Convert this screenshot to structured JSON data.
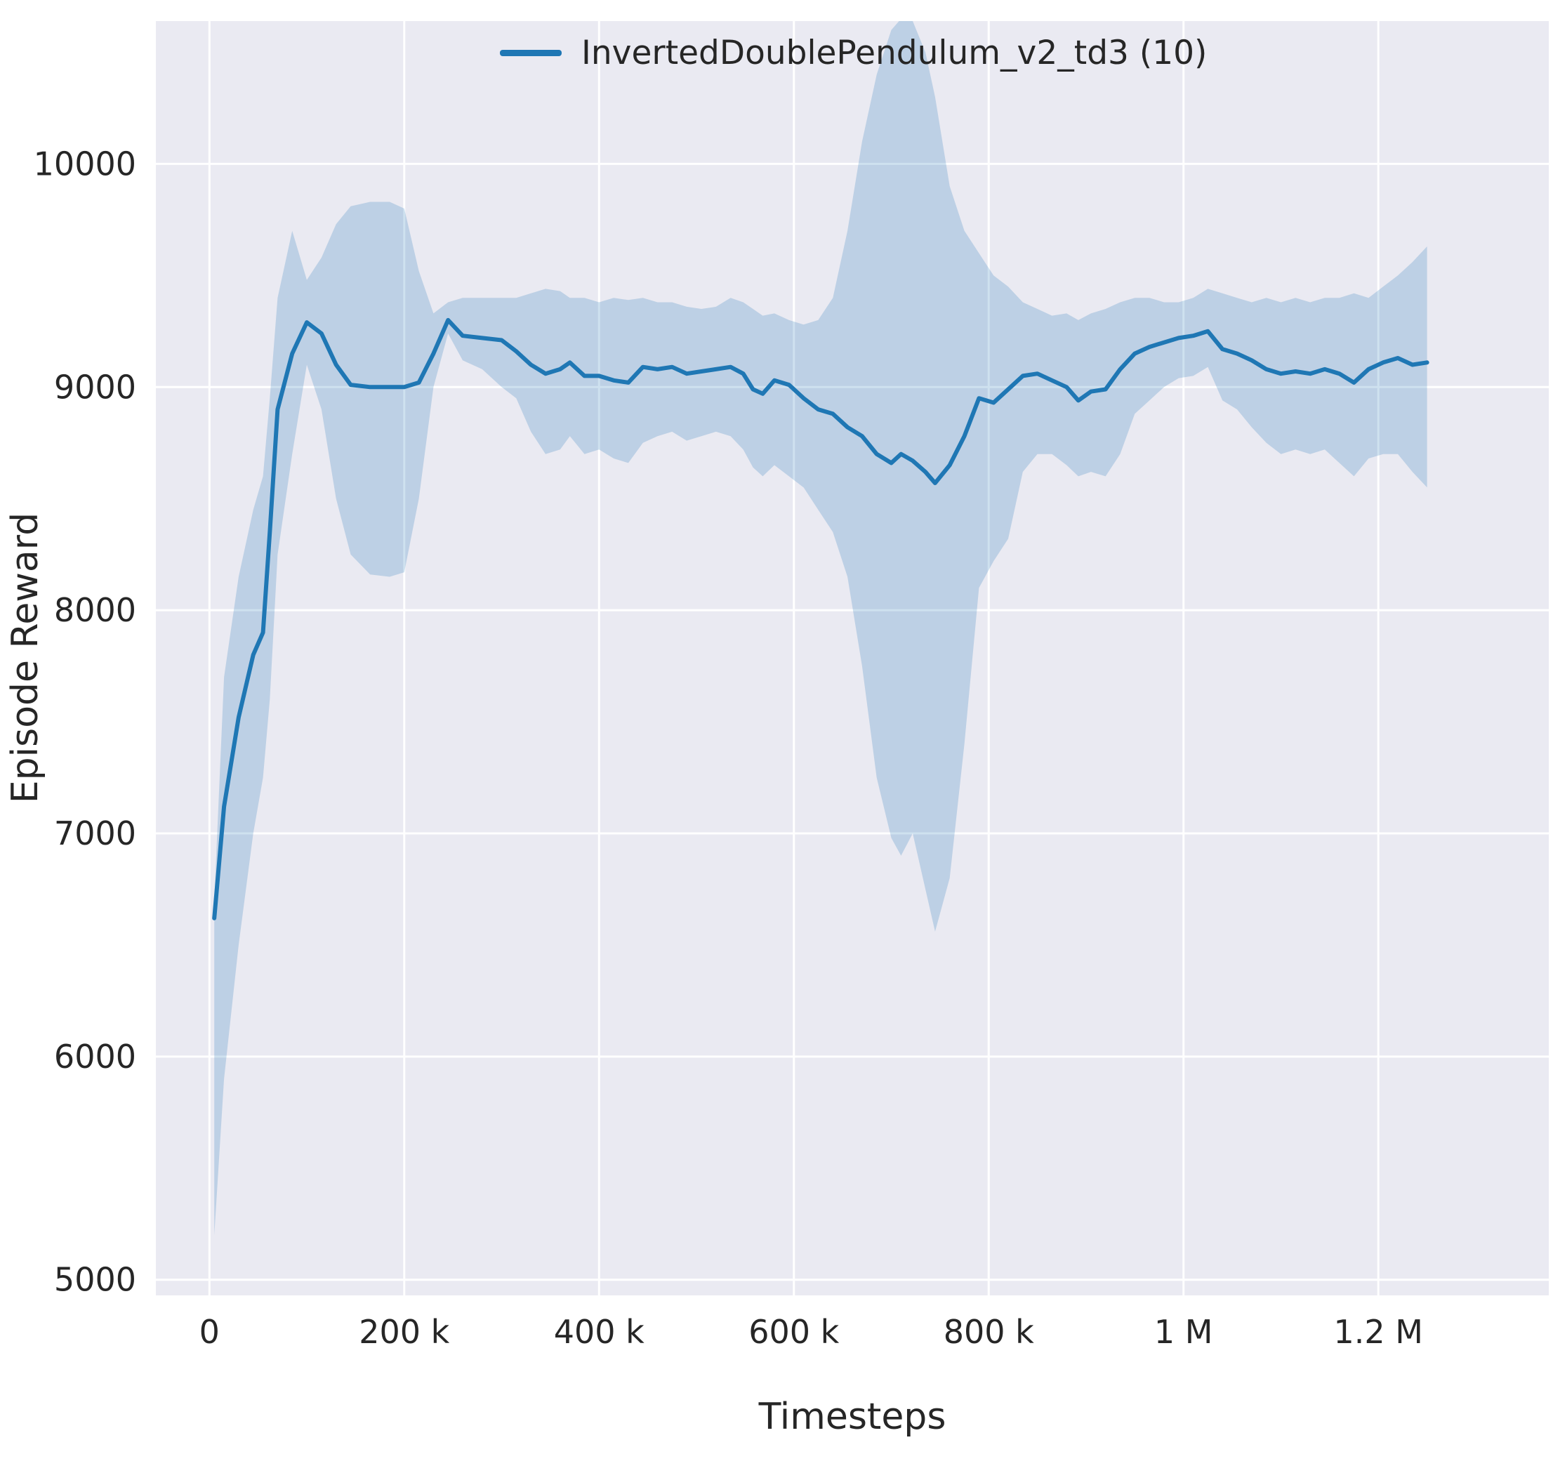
{
  "figure": {
    "background": "#ffffff",
    "plot_background": "#eaeaf2",
    "grid_color": "#ffffff",
    "text_color": "#262626"
  },
  "legend": {
    "label": "InvertedDoublePendulum_v2_td3 (10)",
    "line_color": "#1f77b4"
  },
  "chart_data": {
    "type": "line",
    "title": "",
    "xlabel": "Timesteps",
    "ylabel": "Episode Reward",
    "grid": true,
    "legend_position": "upper center",
    "xlim": [
      -55000,
      1375000
    ],
    "ylim": [
      4930,
      10640
    ],
    "x_ticks": [
      0,
      200000,
      400000,
      600000,
      800000,
      1000000,
      1200000
    ],
    "x_tick_labels": [
      "0",
      "200 k",
      "400 k",
      "600 k",
      "800 k",
      "1 M",
      "1.2 M"
    ],
    "y_ticks": [
      5000,
      6000,
      7000,
      8000,
      9000,
      10000
    ],
    "y_tick_labels": [
      "5000",
      "6000",
      "7000",
      "8000",
      "9000",
      "10000"
    ],
    "series": [
      {
        "name": "InvertedDoublePendulum_v2_td3 (10)",
        "color": "#1f77b4",
        "band_color": "#1f77b4",
        "band_opacity": 0.22,
        "x": [
          5000,
          15000,
          30000,
          45000,
          55000,
          62000,
          70000,
          85000,
          100000,
          115000,
          130000,
          145000,
          165000,
          185000,
          200000,
          215000,
          230000,
          245000,
          260000,
          280000,
          300000,
          315000,
          330000,
          345000,
          360000,
          370000,
          385000,
          400000,
          415000,
          430000,
          445000,
          460000,
          475000,
          490000,
          505000,
          520000,
          535000,
          548000,
          558000,
          568000,
          580000,
          595000,
          610000,
          625000,
          640000,
          655000,
          670000,
          685000,
          700000,
          710000,
          722000,
          735000,
          745000,
          760000,
          775000,
          790000,
          805000,
          820000,
          835000,
          850000,
          865000,
          880000,
          892000,
          905000,
          920000,
          935000,
          950000,
          965000,
          980000,
          995000,
          1010000,
          1025000,
          1040000,
          1055000,
          1070000,
          1085000,
          1100000,
          1115000,
          1130000,
          1145000,
          1160000,
          1175000,
          1190000,
          1205000,
          1220000,
          1235000,
          1250000
        ],
        "mean": [
          6620,
          7120,
          7520,
          7800,
          7900,
          8350,
          8900,
          9150,
          9290,
          9240,
          9100,
          9010,
          9000,
          9000,
          9000,
          9020,
          9150,
          9300,
          9230,
          9220,
          9210,
          9160,
          9100,
          9060,
          9080,
          9110,
          9050,
          9050,
          9030,
          9020,
          9090,
          9080,
          9090,
          9060,
          9070,
          9080,
          9090,
          9060,
          8990,
          8970,
          9030,
          9010,
          8950,
          8900,
          8880,
          8820,
          8780,
          8700,
          8660,
          8700,
          8670,
          8620,
          8570,
          8650,
          8780,
          8950,
          8930,
          8990,
          9050,
          9060,
          9030,
          9000,
          8940,
          8980,
          8990,
          9080,
          9150,
          9180,
          9200,
          9220,
          9230,
          9250,
          9170,
          9150,
          9120,
          9080,
          9060,
          9070,
          9060,
          9080,
          9060,
          9020,
          9080,
          9110,
          9130,
          9100,
          9110
        ],
        "lo": [
          5200,
          5900,
          6500,
          7000,
          7250,
          7600,
          8250,
          8700,
          9100,
          8900,
          8500,
          8250,
          8160,
          8150,
          8170,
          8500,
          9000,
          9240,
          9120,
          9080,
          9000,
          8950,
          8800,
          8700,
          8720,
          8780,
          8700,
          8720,
          8680,
          8660,
          8750,
          8780,
          8800,
          8760,
          8780,
          8800,
          8780,
          8720,
          8640,
          8600,
          8650,
          8600,
          8550,
          8450,
          8350,
          8150,
          7750,
          7250,
          6980,
          6900,
          7000,
          6750,
          6560,
          6800,
          7400,
          8100,
          8220,
          8320,
          8620,
          8700,
          8700,
          8650,
          8600,
          8620,
          8600,
          8700,
          8880,
          8940,
          9000,
          9040,
          9050,
          9090,
          8940,
          8900,
          8820,
          8750,
          8700,
          8720,
          8700,
          8720,
          8660,
          8600,
          8680,
          8700,
          8700,
          8620,
          8550
        ],
        "hi": [
          6700,
          7700,
          8150,
          8450,
          8600,
          8950,
          9400,
          9700,
          9480,
          9580,
          9730,
          9810,
          9830,
          9830,
          9800,
          9520,
          9330,
          9380,
          9400,
          9400,
          9400,
          9400,
          9420,
          9440,
          9430,
          9400,
          9400,
          9380,
          9400,
          9390,
          9400,
          9380,
          9380,
          9360,
          9350,
          9360,
          9400,
          9380,
          9350,
          9320,
          9330,
          9300,
          9280,
          9300,
          9400,
          9700,
          10100,
          10400,
          10600,
          10650,
          10640,
          10500,
          10300,
          9900,
          9700,
          9600,
          9500,
          9450,
          9380,
          9350,
          9320,
          9330,
          9300,
          9330,
          9350,
          9380,
          9400,
          9400,
          9380,
          9380,
          9400,
          9440,
          9420,
          9400,
          9380,
          9400,
          9380,
          9400,
          9380,
          9400,
          9400,
          9420,
          9400,
          9450,
          9500,
          9560,
          9630
        ]
      }
    ]
  }
}
